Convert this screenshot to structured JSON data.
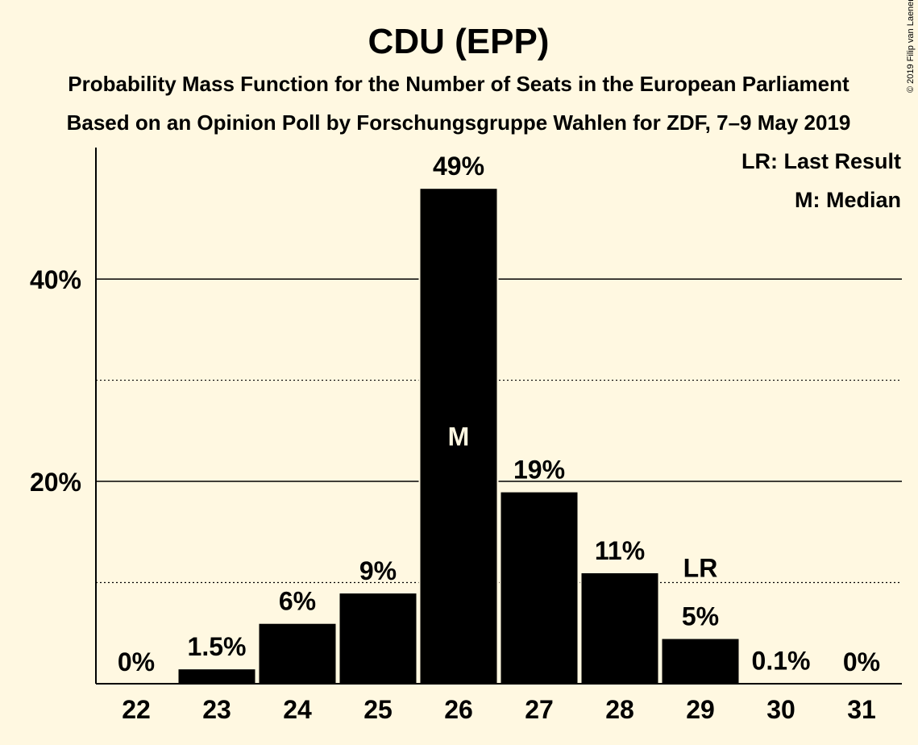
{
  "chart_data": {
    "type": "bar",
    "title": "CDU (EPP)",
    "subtitle_1": "Probability Mass Function for the Number of Seats in the European Parliament",
    "subtitle_2": "Based on an Opinion Poll by Forschungsgruppe Wahlen for ZDF, 7–9 May 2019",
    "categories": [
      "22",
      "23",
      "24",
      "25",
      "26",
      "27",
      "28",
      "29",
      "30",
      "31"
    ],
    "values": [
      0,
      1.5,
      6,
      9,
      49,
      19,
      11,
      4.5,
      0.1,
      0
    ],
    "value_labels": [
      "0%",
      "1.5%",
      "6%",
      "9%",
      "49%",
      "19%",
      "11%",
      "5%",
      "0.1%",
      "0%"
    ],
    "ylim": [
      0,
      53
    ],
    "yticks": [
      {
        "value": 20,
        "label": "20%"
      },
      {
        "value": 40,
        "label": "40%"
      }
    ],
    "minor_gridlines": [
      10,
      30
    ],
    "median_category": "26",
    "median_marker": "M",
    "last_result_category": "29",
    "last_result_marker": "LR",
    "legend": [
      "LR: Last Result",
      "M: Median"
    ],
    "legend_position": "top-right",
    "bar_color": "#000000",
    "background_color": "#fff8e1"
  },
  "copyright": "© 2019 Filip van Laenen"
}
